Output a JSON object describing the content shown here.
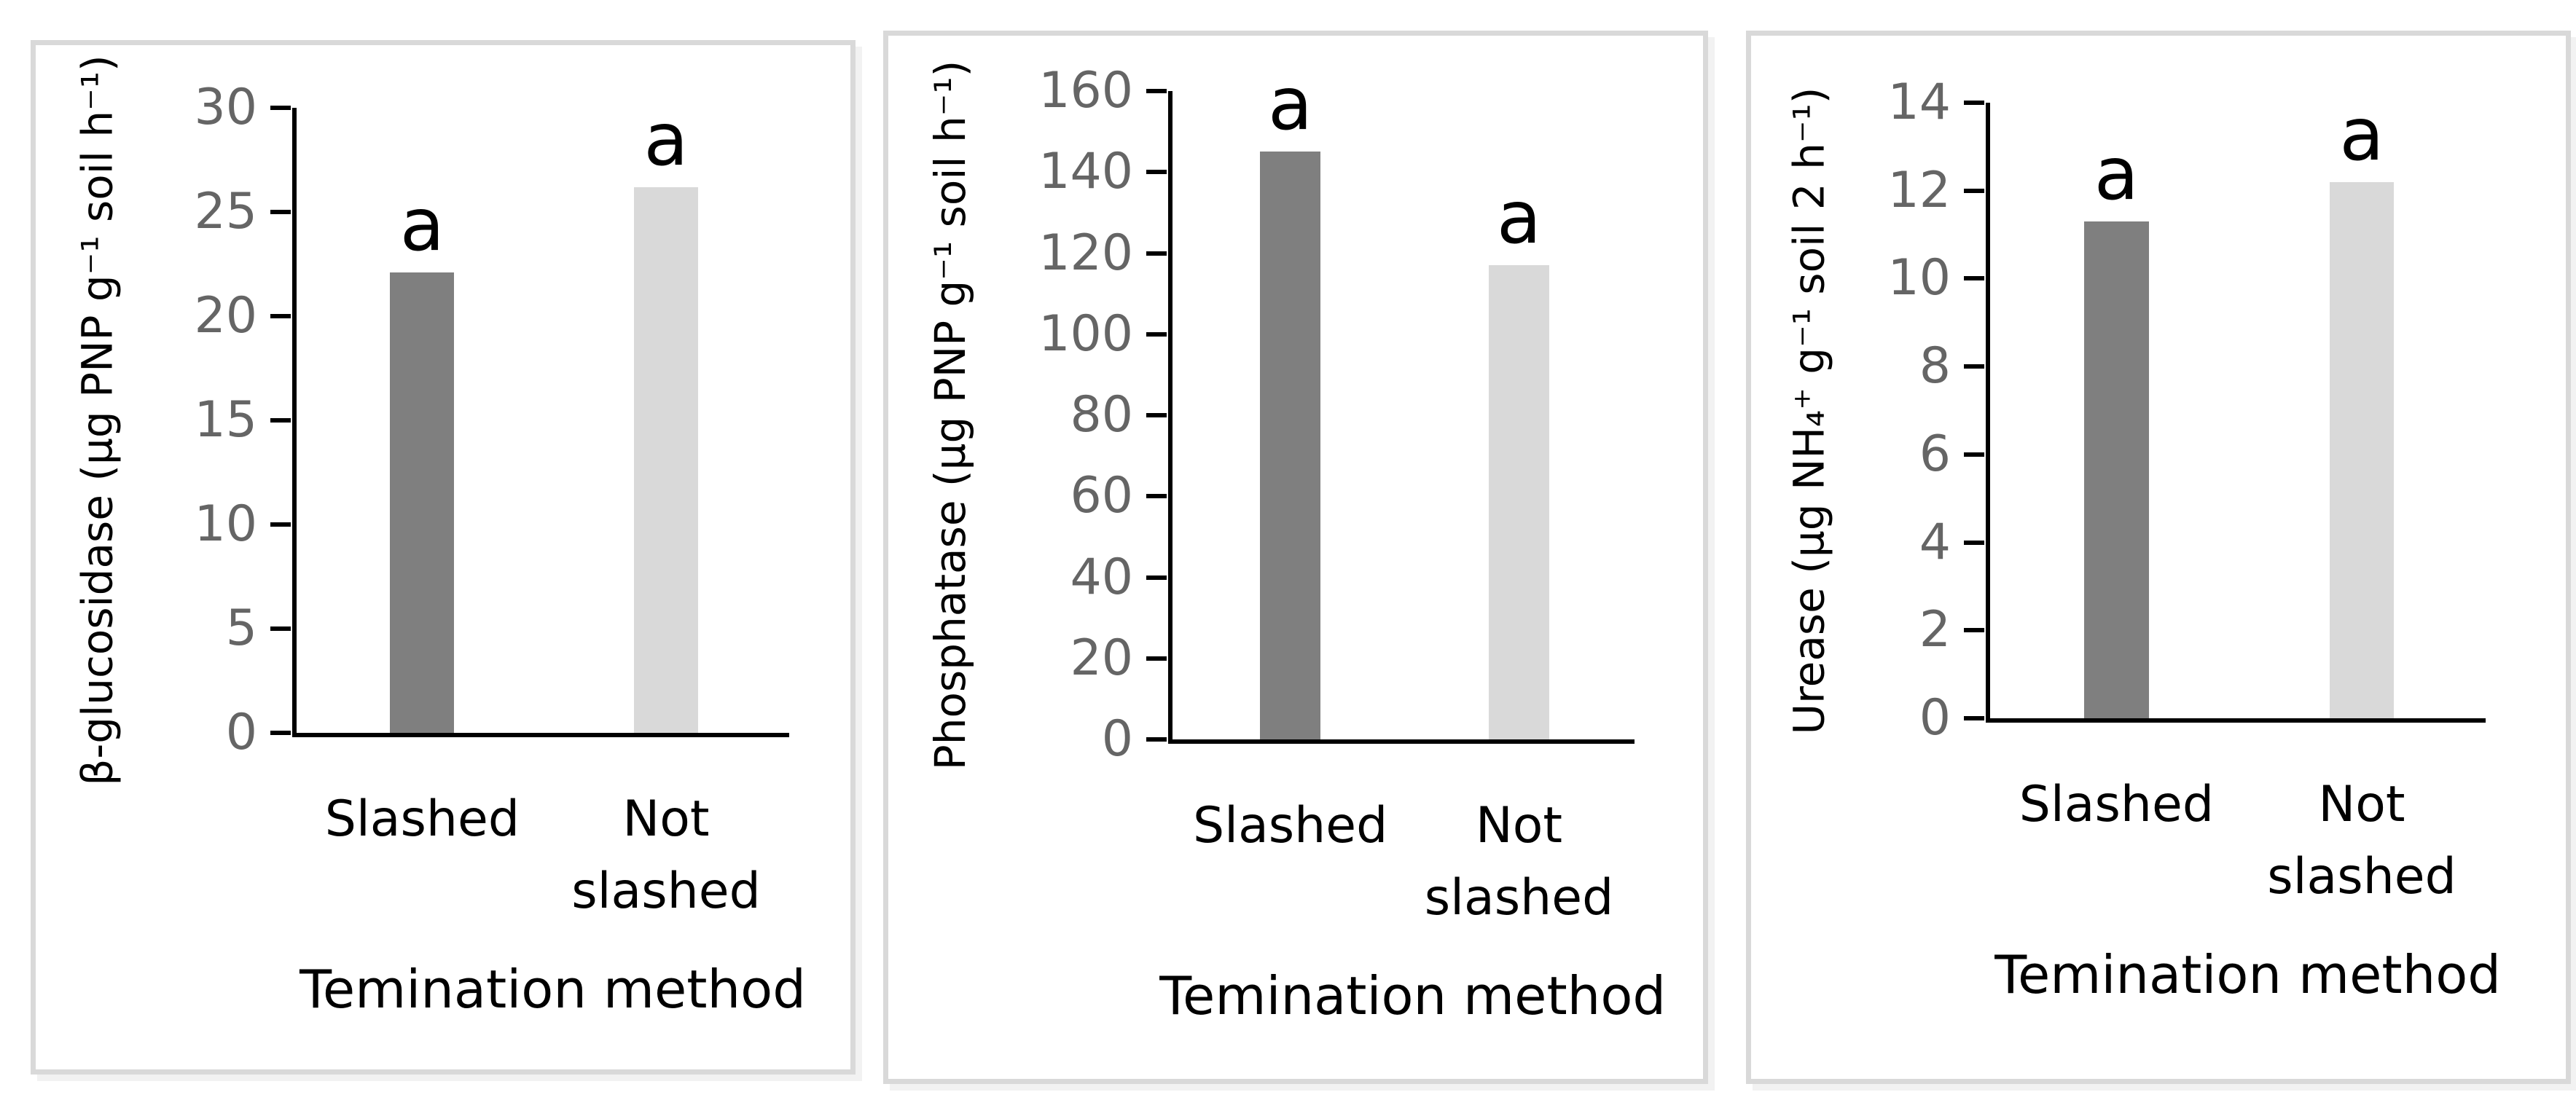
{
  "x_axis_title": "Temination method",
  "colors": {
    "bar_dark": "#7f7f7f",
    "bar_light": "#d9d9d9",
    "axis_line": "#000000",
    "tick_label_gray": "#656565",
    "panel_border": "#d9d9d9",
    "background": "#ffffff"
  },
  "chart_data": [
    {
      "type": "bar",
      "title": "",
      "ylabel": "β-glucosidase (µg PNP g⁻¹ soil h⁻¹)",
      "xlabel": "Temination method",
      "categories": [
        "Slashed",
        "Not slashed"
      ],
      "values": [
        22.1,
        26.2
      ],
      "sig_letters": [
        "a",
        "a"
      ],
      "bar_colors": [
        "#7f7f7f",
        "#d9d9d9"
      ],
      "ylim": [
        0,
        30
      ],
      "ytick_step": 5,
      "ytick_labels": [
        "30",
        "25",
        "20",
        "15",
        "10",
        "5",
        "0"
      ],
      "grid": false,
      "legend": false
    },
    {
      "type": "bar",
      "title": "",
      "ylabel": "Phosphatase (µg PNP g⁻¹ soil h⁻¹)",
      "xlabel": "Temination method",
      "categories": [
        "Slashed",
        "Not slashed"
      ],
      "values": [
        145,
        117
      ],
      "sig_letters": [
        "a",
        "a"
      ],
      "bar_colors": [
        "#7f7f7f",
        "#d9d9d9"
      ],
      "ylim": [
        0,
        160
      ],
      "ytick_step": 20,
      "ytick_labels": [
        "160",
        "140",
        "120",
        "100",
        "80",
        "60",
        "40",
        "20",
        "0"
      ],
      "grid": false,
      "legend": false
    },
    {
      "type": "bar",
      "title": "",
      "ylabel": "Urease (µg NH₄⁺ g⁻¹ soil 2 h⁻¹)",
      "xlabel": "Temination method",
      "categories": [
        "Slashed",
        "Not slashed"
      ],
      "values": [
        11.3,
        12.2
      ],
      "sig_letters": [
        "a",
        "a"
      ],
      "bar_colors": [
        "#7f7f7f",
        "#d9d9d9"
      ],
      "ylim": [
        0,
        14
      ],
      "ytick_step": 2,
      "ytick_labels": [
        "14",
        "12",
        "10",
        "8",
        "6",
        "4",
        "2",
        "0"
      ],
      "grid": false,
      "legend": false
    }
  ]
}
